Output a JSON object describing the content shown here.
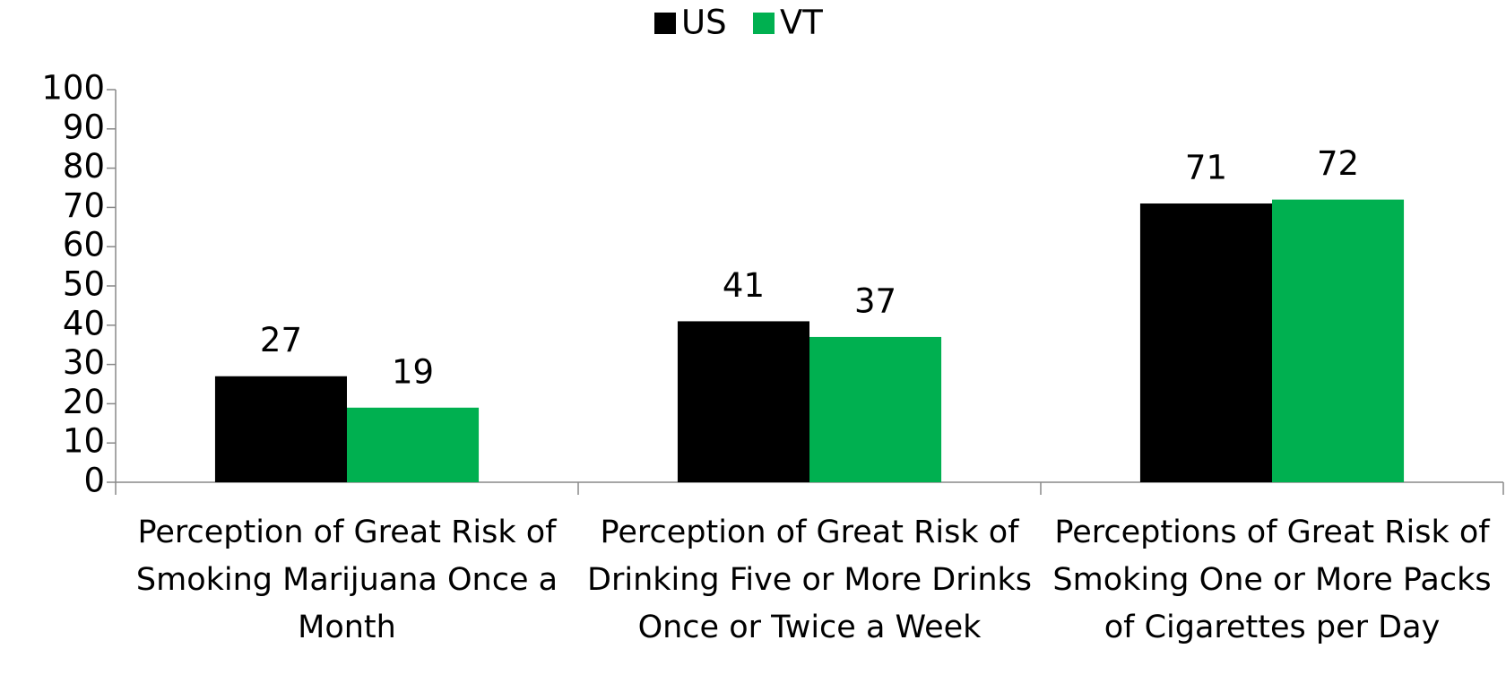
{
  "chart_data": {
    "type": "bar",
    "categories": [
      "Perception of Great Risk of Smoking Marijuana Once a Month",
      "Perception of Great Risk of Drinking Five or More Drinks Once or Twice a Week",
      "Perceptions of Great Risk of Smoking One or More Packs of Cigarettes per Day"
    ],
    "series": [
      {
        "name": "US",
        "color": "#000000",
        "values": [
          27,
          41,
          71
        ]
      },
      {
        "name": "VT",
        "color": "#00b050",
        "values": [
          19,
          37,
          72
        ]
      }
    ],
    "ylim": [
      0,
      100
    ],
    "yticks": [
      0,
      10,
      20,
      30,
      40,
      50,
      60,
      70,
      80,
      90,
      100
    ],
    "legend": "top"
  }
}
